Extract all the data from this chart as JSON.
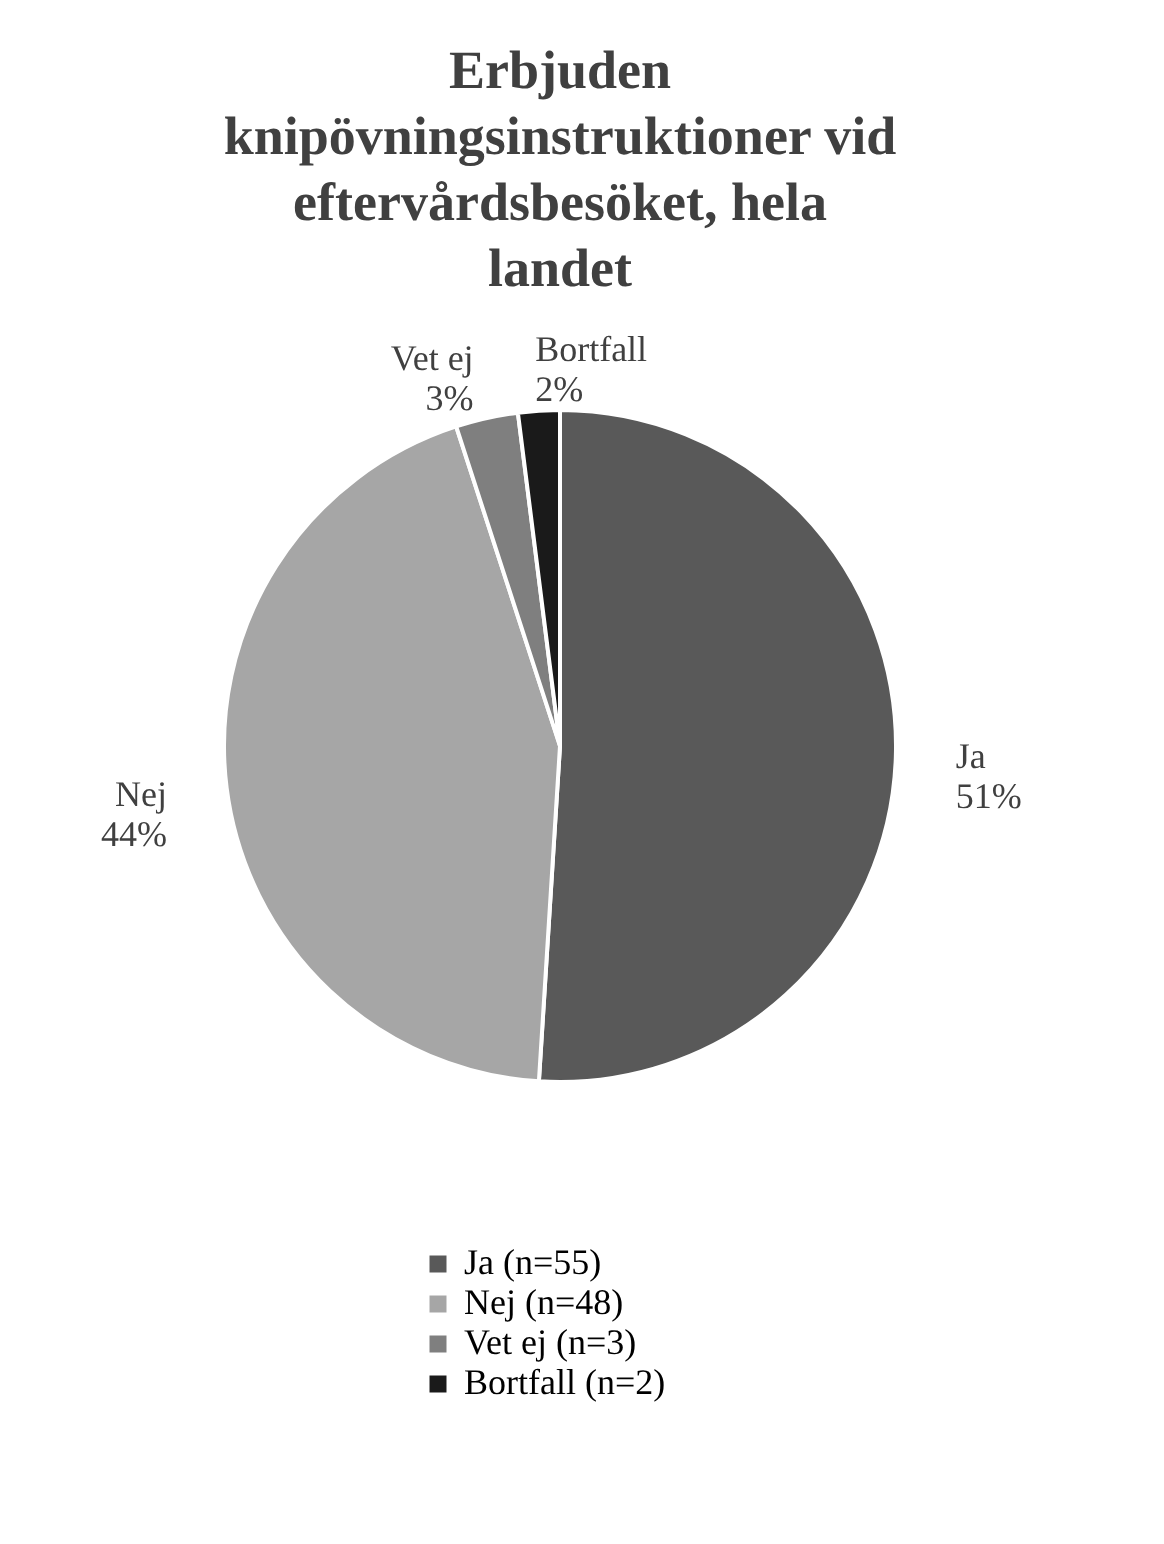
{
  "chart_data": {
    "type": "pie",
    "title": "Erbjuden knipövningsinstruktioner vid eftervårdsbesöket, hela landet",
    "categories": [
      "Ja (n=55)",
      "Nej (n=48)",
      "Vet ej (n=3)",
      "Bortfall (n=2)"
    ],
    "values": [
      51,
      44,
      3,
      2
    ],
    "colors": [
      "#595959",
      "#a6a6a6",
      "#7f7f7f",
      "#1a1a1a"
    ],
    "value_labels": [
      "Ja\n51%",
      "Nej\n44%",
      "Vet ej\n3%",
      "Bortfall\n2%"
    ],
    "legend": "bottom"
  }
}
